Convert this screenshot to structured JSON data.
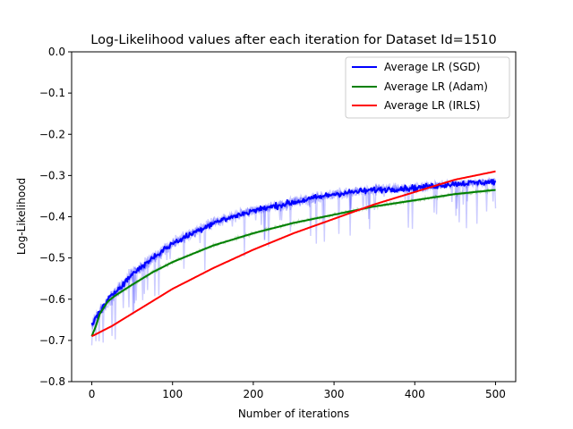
{
  "chart_data": {
    "type": "line",
    "title": "Log-Likelihood values after each iteration for Dataset Id=1510",
    "xlabel": "Number of iterations",
    "ylabel": "Log-Likelihood",
    "xlim": [
      -25,
      525
    ],
    "ylim": [
      -0.8,
      0.0
    ],
    "xticks": [
      "0",
      "100",
      "200",
      "300",
      "400",
      "500"
    ],
    "yticks": [
      "0.0",
      "−0.1",
      "−0.2",
      "−0.3",
      "−0.4",
      "−0.5",
      "−0.6",
      "−0.7",
      "−0.8"
    ],
    "grid": false,
    "legend_position": "top-right",
    "series": [
      {
        "name": "Average LR (SGD)",
        "color": "#0000ff",
        "x": [
          0,
          10,
          25,
          50,
          75,
          100,
          150,
          200,
          250,
          300,
          350,
          400,
          450,
          500
        ],
        "values": [
          -0.66,
          -0.63,
          -0.59,
          -0.54,
          -0.5,
          -0.465,
          -0.415,
          -0.385,
          -0.365,
          -0.345,
          -0.335,
          -0.33,
          -0.32,
          -0.315
        ]
      },
      {
        "name": "Average LR (Adam)",
        "color": "#008000",
        "x": [
          0,
          5,
          10,
          20,
          30,
          50,
          75,
          100,
          150,
          200,
          250,
          300,
          350,
          400,
          450,
          500
        ],
        "values": [
          -0.69,
          -0.665,
          -0.635,
          -0.605,
          -0.59,
          -0.565,
          -0.535,
          -0.51,
          -0.47,
          -0.44,
          -0.415,
          -0.395,
          -0.375,
          -0.36,
          -0.345,
          -0.335
        ]
      },
      {
        "name": "Average LR (IRLS)",
        "color": "#ff0000",
        "x": [
          0,
          25,
          50,
          100,
          150,
          200,
          250,
          300,
          350,
          400,
          450,
          500
        ],
        "values": [
          -0.69,
          -0.665,
          -0.635,
          -0.575,
          -0.525,
          -0.48,
          -0.44,
          -0.405,
          -0.37,
          -0.34,
          -0.31,
          -0.29
        ]
      }
    ]
  }
}
